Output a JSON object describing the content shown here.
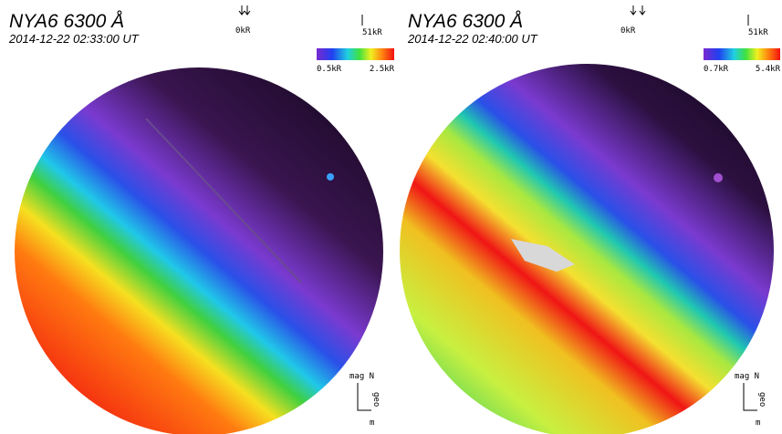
{
  "panels": [
    {
      "title": "NYA6 6300 Å",
      "time": "2014-12-22 02:33:00 UT",
      "scale_low": "0kR",
      "scale_high": "51kR",
      "colorbar_low": "0.5kR",
      "colorbar_high": "2.5kR",
      "compass": "mag N",
      "geo": "geo",
      "unit": "m"
    },
    {
      "title": "NYA6 6300 Å",
      "time": "2014-12-22 02:40:00 UT",
      "scale_low": "0kR",
      "scale_high": "51kR",
      "colorbar_low": "0.7kR",
      "colorbar_high": "5.4kR",
      "compass": "mag N",
      "geo": "geo",
      "unit": "m"
    }
  ]
}
